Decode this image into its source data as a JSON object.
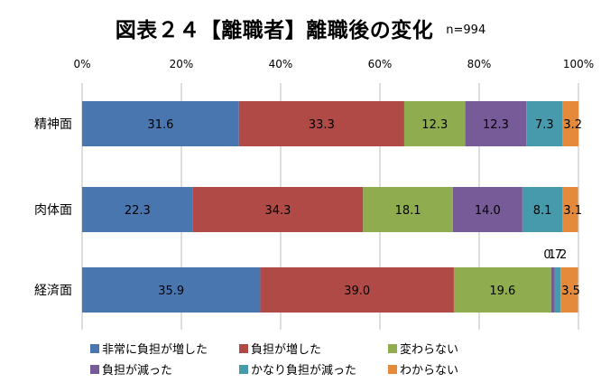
{
  "title": "図表２４【離職者】離職後の変化",
  "sample_size": "n=994",
  "chart_data": {
    "type": "bar",
    "orientation": "horizontal",
    "stacked": "percent",
    "title": "図表２４【離職者】離職後の変化",
    "categories": [
      "精神面",
      "肉体面",
      "経済面"
    ],
    "x_ticks": [
      "0%",
      "20%",
      "40%",
      "60%",
      "80%",
      "100%"
    ],
    "xlim": [
      0,
      100
    ],
    "grid": true,
    "legend_position": "bottom",
    "series": [
      {
        "name": "非常に負担が増した",
        "color": "#4a76b0",
        "values": [
          31.6,
          22.3,
          35.9
        ]
      },
      {
        "name": "負担が増した",
        "color": "#b04a47",
        "values": [
          33.3,
          34.3,
          39.0
        ]
      },
      {
        "name": "変わらない",
        "color": "#8fad4f",
        "values": [
          12.3,
          18.1,
          19.6
        ]
      },
      {
        "name": "負担が減った",
        "color": "#775a98",
        "values": [
          12.3,
          14.0,
          0.7
        ]
      },
      {
        "name": "かなり負担が減った",
        "color": "#4799ac",
        "values": [
          7.3,
          8.1,
          1.2
        ]
      },
      {
        "name": "わからない",
        "color": "#e58a3a",
        "values": [
          3.2,
          3.1,
          3.5
        ]
      }
    ]
  }
}
